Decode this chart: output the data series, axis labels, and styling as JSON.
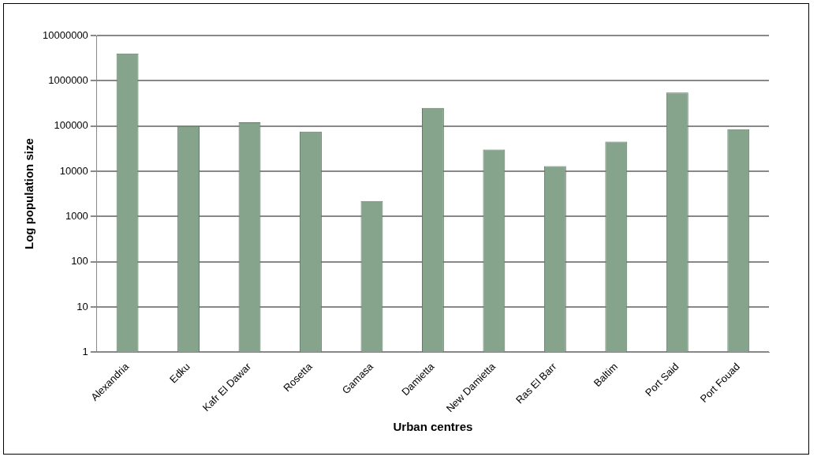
{
  "chart_data": {
    "type": "bar",
    "xlabel": "Urban centres",
    "ylabel": "Log population size",
    "categories": [
      "Alexandria",
      "Edku",
      "Kafr El Dawar",
      "Rosetta",
      "Gamasa",
      "Damietta",
      "New Damietta",
      "Ras El Barr",
      "Baltim",
      "Port Said",
      "Port Fouad"
    ],
    "values": [
      4000000,
      100000,
      120000,
      75000,
      2200,
      250000,
      30000,
      13000,
      45000,
      550000,
      85000
    ],
    "color": "#86a38c",
    "log": true,
    "ylim": [
      1,
      10000000
    ],
    "yticks": [
      1,
      10,
      100,
      1000,
      10000,
      100000,
      1000000,
      10000000
    ],
    "grid": "y",
    "legend": false
  }
}
